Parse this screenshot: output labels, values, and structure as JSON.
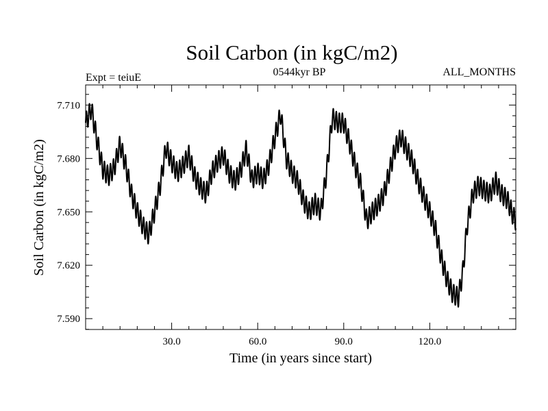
{
  "chart_data": {
    "type": "line",
    "title": "Soil Carbon (in kgC/m2)",
    "subtitle": "0544kyr BP",
    "left_label": "Expt = teiuE",
    "right_label": "ALL_MONTHS",
    "xlabel": "Time (in years since start)",
    "ylabel": "Soil Carbon (in kgC/m2)",
    "xlim": [
      0,
      150
    ],
    "ylim": [
      7.5839,
      7.7213
    ],
    "x_ticks": [
      30,
      60,
      90,
      120
    ],
    "x_tick_labels": [
      "30.0",
      "60.0",
      "90.0",
      "120.0"
    ],
    "y_ticks": [
      7.59,
      7.62,
      7.65,
      7.68,
      7.71
    ],
    "y_tick_labels": [
      "7.590",
      "7.620",
      "7.650",
      "7.680",
      "7.710"
    ],
    "series": [
      {
        "name": "Soil Carbon",
        "x": [
          0,
          2,
          4,
          6,
          8,
          10,
          12,
          14,
          16,
          18,
          20,
          22,
          24,
          26,
          28,
          30,
          32,
          34,
          36,
          38,
          40,
          42,
          44,
          46,
          48,
          50,
          52,
          54,
          56,
          58,
          60,
          62,
          64,
          66,
          68,
          70,
          72,
          74,
          76,
          78,
          80,
          82,
          84,
          86,
          88,
          90,
          92,
          94,
          96,
          98,
          100,
          102,
          104,
          106,
          108,
          110,
          112,
          114,
          116,
          118,
          120,
          122,
          124,
          126,
          128,
          130,
          131.5,
          133,
          135,
          137,
          139,
          141,
          143,
          145,
          147,
          149,
          150
        ],
        "values": [
          7.7,
          7.708,
          7.69,
          7.674,
          7.67,
          7.675,
          7.688,
          7.676,
          7.66,
          7.65,
          7.642,
          7.637,
          7.65,
          7.665,
          7.686,
          7.678,
          7.672,
          7.676,
          7.682,
          7.67,
          7.664,
          7.66,
          7.672,
          7.678,
          7.682,
          7.672,
          7.667,
          7.673,
          7.685,
          7.668,
          7.672,
          7.668,
          7.677,
          7.692,
          7.705,
          7.68,
          7.672,
          7.667,
          7.656,
          7.65,
          7.655,
          7.65,
          7.672,
          7.703,
          7.7,
          7.7,
          7.689,
          7.676,
          7.665,
          7.645,
          7.65,
          7.654,
          7.66,
          7.673,
          7.686,
          7.692,
          7.685,
          7.678,
          7.667,
          7.658,
          7.65,
          7.64,
          7.624,
          7.612,
          7.604,
          7.602,
          7.616,
          7.642,
          7.66,
          7.665,
          7.662,
          7.66,
          7.667,
          7.66,
          7.657,
          7.648,
          7.645
        ],
        "oscillation_amplitude": 0.0055,
        "oscillation_period": 1.05,
        "color": "#000000"
      }
    ]
  }
}
